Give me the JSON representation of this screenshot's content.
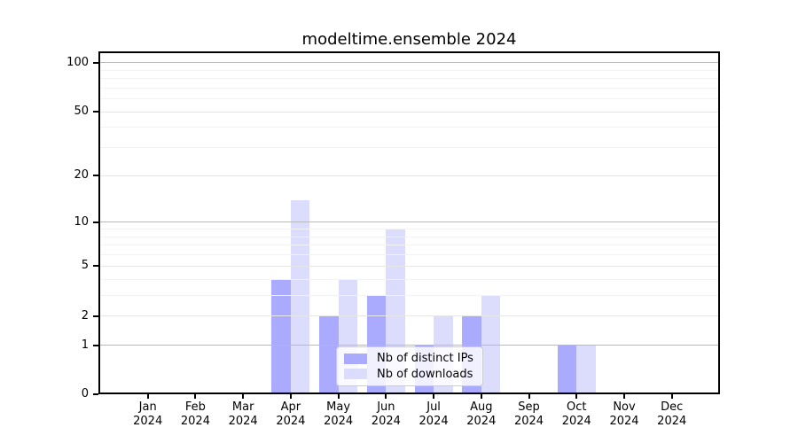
{
  "title": "modeltime.ensemble 2024",
  "chart_data": {
    "type": "bar",
    "title": "modeltime.ensemble 2024",
    "categories": [
      {
        "month": "Jan",
        "year": "2024"
      },
      {
        "month": "Feb",
        "year": "2024"
      },
      {
        "month": "Mar",
        "year": "2024"
      },
      {
        "month": "Apr",
        "year": "2024"
      },
      {
        "month": "May",
        "year": "2024"
      },
      {
        "month": "Jun",
        "year": "2024"
      },
      {
        "month": "Jul",
        "year": "2024"
      },
      {
        "month": "Aug",
        "year": "2024"
      },
      {
        "month": "Sep",
        "year": "2024"
      },
      {
        "month": "Oct",
        "year": "2024"
      },
      {
        "month": "Nov",
        "year": "2024"
      },
      {
        "month": "Dec",
        "year": "2024"
      }
    ],
    "series": [
      {
        "name": "Nb of distinct IPs",
        "color": "#aaaaff",
        "values": [
          0,
          0,
          0,
          4,
          2,
          3,
          1,
          2,
          0,
          1,
          0,
          0
        ]
      },
      {
        "name": "Nb of downloads",
        "color": "#dcdcfc",
        "values": [
          0,
          0,
          0,
          14,
          4,
          9,
          2,
          3,
          0,
          1,
          0,
          0
        ]
      }
    ],
    "xlabel": "",
    "ylabel": "",
    "yscale": "log1p",
    "ylim": [
      0,
      115
    ],
    "yticks": [
      0,
      1,
      2,
      5,
      10,
      20,
      50,
      100
    ],
    "minor_gridlines": [
      3,
      4,
      6,
      7,
      8,
      9,
      30,
      40,
      60,
      70,
      80,
      90
    ],
    "grid": true,
    "grid_over_bars": true,
    "legend_position": "lower center",
    "colors": {
      "decade_gridline": "#b9b9b9",
      "major_gridline": "#e6e6e6",
      "minor_gridline": "#f3f3f3",
      "axis": "#000000",
      "text": "#000000"
    }
  }
}
